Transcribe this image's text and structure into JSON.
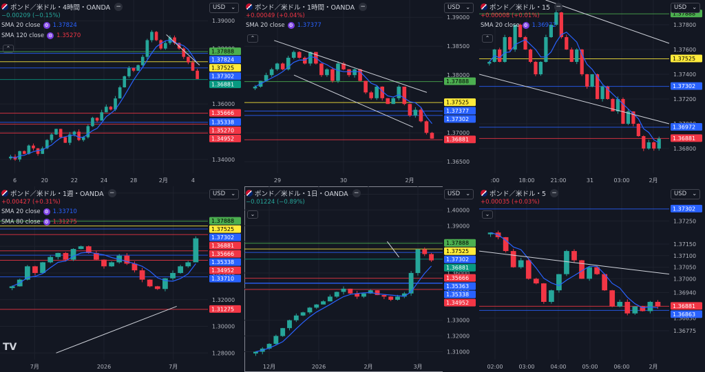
{
  "colors": {
    "bg": "#131722",
    "up": "#26a69a",
    "down": "#f23645",
    "grid": "#1e222d",
    "text": "#b2b5be",
    "sma_blue": "#2962ff",
    "sma_red": "#b22833",
    "trend": "#d1d4dc"
  },
  "panels": [
    {
      "id": "p1",
      "title": "ポンド／米ドル・4時間・OANDA",
      "change": "−0.00209 (−0.15%)",
      "change_color": "#26a69a",
      "indicators": [
        {
          "label": "SMA 20 close",
          "value": "1.37824",
          "color": "#2962ff"
        },
        {
          "label": "SMA 120 close",
          "value": "1.35270",
          "color": "#f23645"
        }
      ],
      "currency": "USD",
      "collapse": "^",
      "chart_data": {
        "type": "candlestick",
        "ylim": [
          1.335,
          1.3975
        ],
        "x_ticks": [
          "6",
          "20",
          "22",
          "24",
          "28",
          "2月",
          "4"
        ],
        "y_ticks": [
          {
            "v": 1.39,
            "t": "1.39000"
          },
          {
            "v": 1.38,
            "t": "1.38000"
          },
          {
            "v": 1.36,
            "t": "1.36000"
          },
          {
            "v": 1.35,
            "t": "1.35000"
          },
          {
            "v": 1.34,
            "t": "1.34000"
          }
        ],
        "levels": [
          {
            "v": 1.37888,
            "t": "1.37888",
            "c": "#4caf50",
            "tc": "#000"
          },
          {
            "v": 1.37824,
            "t": "1.37824",
            "c": "#2962ff",
            "tc": "#fff"
          },
          {
            "v": 1.37525,
            "t": "1.37525",
            "c": "#ffeb3b",
            "tc": "#000"
          },
          {
            "v": 1.37302,
            "t": "1.37302",
            "c": "#2962ff",
            "tc": "#fff"
          },
          {
            "v": 1.36881,
            "t": "1.36881",
            "c": "#089981",
            "tc": "#fff"
          },
          {
            "v": 1.35666,
            "t": "1.35666",
            "c": "#f23645",
            "tc": "#fff"
          },
          {
            "v": 1.35338,
            "t": "1.35338",
            "c": "#2962ff",
            "tc": "#fff"
          },
          {
            "v": 1.3527,
            "t": "1.35270",
            "c": "#f23645",
            "tc": "#fff"
          },
          {
            "v": 1.34952,
            "t": "1.34952",
            "c": "#f23645",
            "tc": "#fff"
          }
        ],
        "path": [
          1.341,
          1.34,
          1.343,
          1.342,
          1.345,
          1.344,
          1.342,
          1.344,
          1.347,
          1.349,
          1.351,
          1.348,
          1.346,
          1.349,
          1.35,
          1.347,
          1.348,
          1.352,
          1.355,
          1.354,
          1.357,
          1.359,
          1.358,
          1.362,
          1.366,
          1.37,
          1.373,
          1.372,
          1.374,
          1.377,
          1.383,
          1.386,
          1.383,
          1.38,
          1.382,
          1.384,
          1.382,
          1.38,
          1.377,
          1.375,
          1.372,
          1.369
        ],
        "trend": [
          [
            0.8,
            1.385
          ],
          [
            0.96,
            1.374
          ]
        ]
      }
    },
    {
      "id": "p2",
      "title": "ポンド／米ドル・1時間・OANDA",
      "change": "+0.00049 (+0.04%)",
      "change_color": "#f23645",
      "indicators": [
        {
          "label": "SMA 20 close",
          "value": "1.37377",
          "color": "#2962ff"
        }
      ],
      "currency": "USD",
      "collapse": "^",
      "chart_data": {
        "type": "candlestick",
        "ylim": [
          1.363,
          1.393
        ],
        "x_ticks": [
          "29",
          "30",
          "2月"
        ],
        "y_ticks": [
          {
            "v": 1.39,
            "t": "1.39000"
          },
          {
            "v": 1.385,
            "t": "1.38500"
          },
          {
            "v": 1.38,
            "t": "1.38000"
          },
          {
            "v": 1.37,
            "t": "1.37000"
          },
          {
            "v": 1.365,
            "t": "1.36500"
          }
        ],
        "levels": [
          {
            "v": 1.37888,
            "t": "1.37888",
            "c": "#4caf50",
            "tc": "#000"
          },
          {
            "v": 1.37525,
            "t": "1.37525",
            "c": "#ffeb3b",
            "tc": "#000"
          },
          {
            "v": 1.37377,
            "t": "1.37377",
            "c": "#2962ff",
            "tc": "#fff"
          },
          {
            "v": 1.37302,
            "t": "1.37302",
            "c": "#2962ff",
            "tc": "#fff"
          },
          {
            "v": 1.36881,
            "t": "1.36881",
            "c": "#f23645",
            "tc": "#fff"
          }
        ],
        "path": [
          1.378,
          1.379,
          1.38,
          1.381,
          1.382,
          1.381,
          1.383,
          1.384,
          1.383,
          1.382,
          1.384,
          1.382,
          1.38,
          1.381,
          1.379,
          1.382,
          1.381,
          1.38,
          1.381,
          1.379,
          1.377,
          1.376,
          1.378,
          1.376,
          1.375,
          1.376,
          1.378,
          1.375,
          1.373,
          1.374,
          1.372,
          1.37,
          1.369
        ],
        "trend": [
          [
            0.15,
            1.386
          ],
          [
            0.92,
            1.377
          ]
        ],
        "trend2": [
          [
            0.25,
            1.38
          ],
          [
            0.85,
            1.371
          ]
        ]
      }
    },
    {
      "id": "p3",
      "title": "ポンド／米ドル・15",
      "change": "+0.00008 (+0.01%)",
      "change_color": "#f23645",
      "indicators": [
        {
          "label": "SMA 20 close",
          "value": "1.36972",
          "color": "#2962ff"
        }
      ],
      "currency": "USD",
      "collapse": "^",
      "chart_data": {
        "type": "candlestick",
        "ylim": [
          1.366,
          1.38
        ],
        "x_ticks": [
          ":00",
          "18:00",
          "21:00",
          "31",
          "03:00",
          "2月"
        ],
        "y_ticks": [
          {
            "v": 1.378,
            "t": "1.37800"
          },
          {
            "v": 1.376,
            "t": "1.37600"
          },
          {
            "v": 1.374,
            "t": "1.37400"
          },
          {
            "v": 1.372,
            "t": "1.37200"
          },
          {
            "v": 1.37,
            "t": "1.37000"
          },
          {
            "v": 1.368,
            "t": "1.36800"
          }
        ],
        "levels": [
          {
            "v": 1.37888,
            "t": "1.37888",
            "c": "#4caf50",
            "tc": "#000"
          },
          {
            "v": 1.37525,
            "t": "1.37525",
            "c": "#ffeb3b",
            "tc": "#000"
          },
          {
            "v": 1.37302,
            "t": "1.37302",
            "c": "#2962ff",
            "tc": "#fff"
          },
          {
            "v": 1.36972,
            "t": "1.36972",
            "c": "#2962ff",
            "tc": "#fff"
          },
          {
            "v": 1.36881,
            "t": "1.36881",
            "c": "#f23645",
            "tc": "#fff"
          }
        ],
        "path": [
          1.375,
          1.376,
          1.375,
          1.377,
          1.376,
          1.378,
          1.377,
          1.376,
          1.375,
          1.374,
          1.375,
          1.377,
          1.378,
          1.379,
          1.377,
          1.376,
          1.375,
          1.376,
          1.374,
          1.373,
          1.374,
          1.372,
          1.373,
          1.372,
          1.371,
          1.372,
          1.37,
          1.371,
          1.37,
          1.369,
          1.368,
          1.3685,
          1.368,
          1.3688
        ],
        "trend": [
          [
            0.35,
            1.38
          ],
          [
            1.0,
            1.3765
          ]
        ],
        "trend2": [
          [
            0.0,
            1.374
          ],
          [
            1.0,
            1.37
          ]
        ]
      }
    },
    {
      "id": "p4",
      "title": "ポンド／米ドル・1週・OANDA",
      "change": "+0.00427 (+0.31%)",
      "change_color": "#f23645",
      "indicators": [
        {
          "label": "SMA 20 close",
          "value": "1.33710",
          "color": "#2962ff"
        },
        {
          "label": "SMA 80 close",
          "value": "1.31275",
          "color": "#f23645"
        }
      ],
      "currency": "USD",
      "collapse": "",
      "chart_data": {
        "type": "candlestick",
        "ylim": [
          1.275,
          1.405
        ],
        "x_ticks": [
          "7月",
          "2026",
          "7月"
        ],
        "y_ticks": [
          {
            "v": 1.4,
            "t": "1.40000"
          },
          {
            "v": 1.38,
            "t": "1.38000"
          },
          {
            "v": 1.36,
            "t": "1.36000"
          },
          {
            "v": 1.34,
            "t": "1.34000"
          },
          {
            "v": 1.32,
            "t": "1.32000"
          },
          {
            "v": 1.3,
            "t": "1.30000"
          },
          {
            "v": 1.28,
            "t": "1.28000"
          }
        ],
        "levels": [
          {
            "v": 1.37888,
            "t": "1.37888",
            "c": "#4caf50",
            "tc": "#000"
          },
          {
            "v": 1.37525,
            "t": "1.37525",
            "c": "#ffeb3b",
            "tc": "#000"
          },
          {
            "v": 1.37302,
            "t": "1.37302",
            "c": "#2962ff",
            "tc": "#fff"
          },
          {
            "v": 1.36881,
            "t": "1.36881",
            "c": "#f23645",
            "tc": "#fff"
          },
          {
            "v": 1.35666,
            "t": "1.35666",
            "c": "#f23645",
            "tc": "#fff"
          },
          {
            "v": 1.35338,
            "t": "1.35338",
            "c": "#2962ff",
            "tc": "#fff"
          },
          {
            "v": 1.34952,
            "t": "1.34952",
            "c": "#f23645",
            "tc": "#fff"
          },
          {
            "v": 1.3371,
            "t": "1.33710",
            "c": "#2962ff",
            "tc": "#fff"
          },
          {
            "v": 1.31275,
            "t": "1.31275",
            "c": "#f23645",
            "tc": "#fff"
          }
        ],
        "path": [
          1.33,
          1.335,
          1.345,
          1.34,
          1.348,
          1.352,
          1.355,
          1.35,
          1.358,
          1.36,
          1.355,
          1.35,
          1.345,
          1.348,
          1.353,
          1.347,
          1.342,
          1.335,
          1.33,
          1.328,
          1.336,
          1.34,
          1.345,
          1.348,
          1.366
        ],
        "trend": [
          [
            0.27,
            1.28
          ],
          [
            0.85,
            1.315
          ]
        ]
      }
    },
    {
      "id": "p5",
      "title": "ポンド／米ドル・1日・OANDA",
      "change": "−0.01224 (−0.89%)",
      "change_color": "#26a69a",
      "indicators": [],
      "currency": "USD",
      "collapse": "v",
      "chart_data": {
        "type": "candlestick",
        "ylim": [
          1.305,
          1.415
        ],
        "x_ticks": [
          "12月",
          "2026",
          "2月",
          "3月"
        ],
        "y_ticks": [
          {
            "v": 1.41,
            "t": "1.41000"
          },
          {
            "v": 1.4,
            "t": "1.40000"
          },
          {
            "v": 1.39,
            "t": "1.39000"
          },
          {
            "v": 1.38,
            "t": "1.38000"
          },
          {
            "v": 1.36,
            "t": "1.36000"
          },
          {
            "v": 1.35,
            "t": "1.35000"
          },
          {
            "v": 1.33,
            "t": "1.33000"
          },
          {
            "v": 1.32,
            "t": "1.32000"
          },
          {
            "v": 1.31,
            "t": "1.31000"
          }
        ],
        "levels": [
          {
            "v": 1.37888,
            "t": "1.37888",
            "c": "#4caf50",
            "tc": "#000"
          },
          {
            "v": 1.37525,
            "t": "1.37525",
            "c": "#ffeb3b",
            "tc": "#000"
          },
          {
            "v": 1.37302,
            "t": "1.37302",
            "c": "#2962ff",
            "tc": "#fff"
          },
          {
            "v": 1.36881,
            "t": "1.36881",
            "c": "#089981",
            "tc": "#fff"
          },
          {
            "v": 1.35666,
            "t": "1.35666",
            "c": "#f23645",
            "tc": "#fff"
          },
          {
            "v": 1.35363,
            "t": "1.35363",
            "c": "#2962ff",
            "tc": "#fff"
          },
          {
            "v": 1.35338,
            "t": "1.35338",
            "c": "#2962ff",
            "tc": "#fff"
          },
          {
            "v": 1.34952,
            "t": "1.34952",
            "c": "#f23645",
            "tc": "#fff"
          }
        ],
        "path": [
          1.31,
          1.312,
          1.315,
          1.32,
          1.325,
          1.33,
          1.333,
          1.335,
          1.338,
          1.34,
          1.342,
          1.345,
          1.348,
          1.35,
          1.347,
          1.345,
          1.347,
          1.349,
          1.346,
          1.345,
          1.343,
          1.345,
          1.347,
          1.36,
          1.375,
          1.372,
          1.368
        ],
        "trend": [
          [
            0.72,
            1.38
          ],
          [
            0.78,
            1.37
          ]
        ]
      }
    },
    {
      "id": "p6",
      "title": "ポンド／米ドル・5",
      "change": "+0.00035 (+0.03%)",
      "change_color": "#f23645",
      "indicators": [],
      "currency": "USD",
      "collapse": "v",
      "chart_data": {
        "type": "candlestick",
        "ylim": [
          1.3665,
          1.374
        ],
        "x_ticks": [
          "02:00",
          "03:00",
          "04:00",
          "05:00",
          "06:00",
          "2月"
        ],
        "y_ticks": [
          {
            "v": 1.3725,
            "t": "1.37250"
          },
          {
            "v": 1.3715,
            "t": "1.37150"
          },
          {
            "v": 1.371,
            "t": "1.37100"
          },
          {
            "v": 1.3705,
            "t": "1.37050"
          },
          {
            "v": 1.37,
            "t": "1.37000"
          },
          {
            "v": 1.3694,
            "t": "1.36940"
          },
          {
            "v": 1.3683,
            "t": "1.36830"
          },
          {
            "v": 1.36775,
            "t": "1.36775"
          }
        ],
        "levels": [
          {
            "v": 1.37302,
            "t": "1.37302",
            "c": "#2962ff",
            "tc": "#fff"
          },
          {
            "v": 1.36881,
            "t": "1.36881",
            "c": "#f23645",
            "tc": "#fff"
          },
          {
            "v": 1.36863,
            "t": "1.36863",
            "c": "#2962ff",
            "tc": "#fff"
          }
        ],
        "path": [
          1.372,
          1.3718,
          1.3712,
          1.3705,
          1.3708,
          1.37,
          1.3698,
          1.369,
          1.3695,
          1.3702,
          1.3712,
          1.3708,
          1.37,
          1.3705,
          1.3702,
          1.3695,
          1.3688,
          1.369,
          1.3685,
          1.3688,
          1.3686,
          1.369,
          1.3688
        ],
        "trend": [
          [
            0.0,
            1.3712
          ],
          [
            1.0,
            1.3702
          ]
        ]
      }
    }
  ]
}
